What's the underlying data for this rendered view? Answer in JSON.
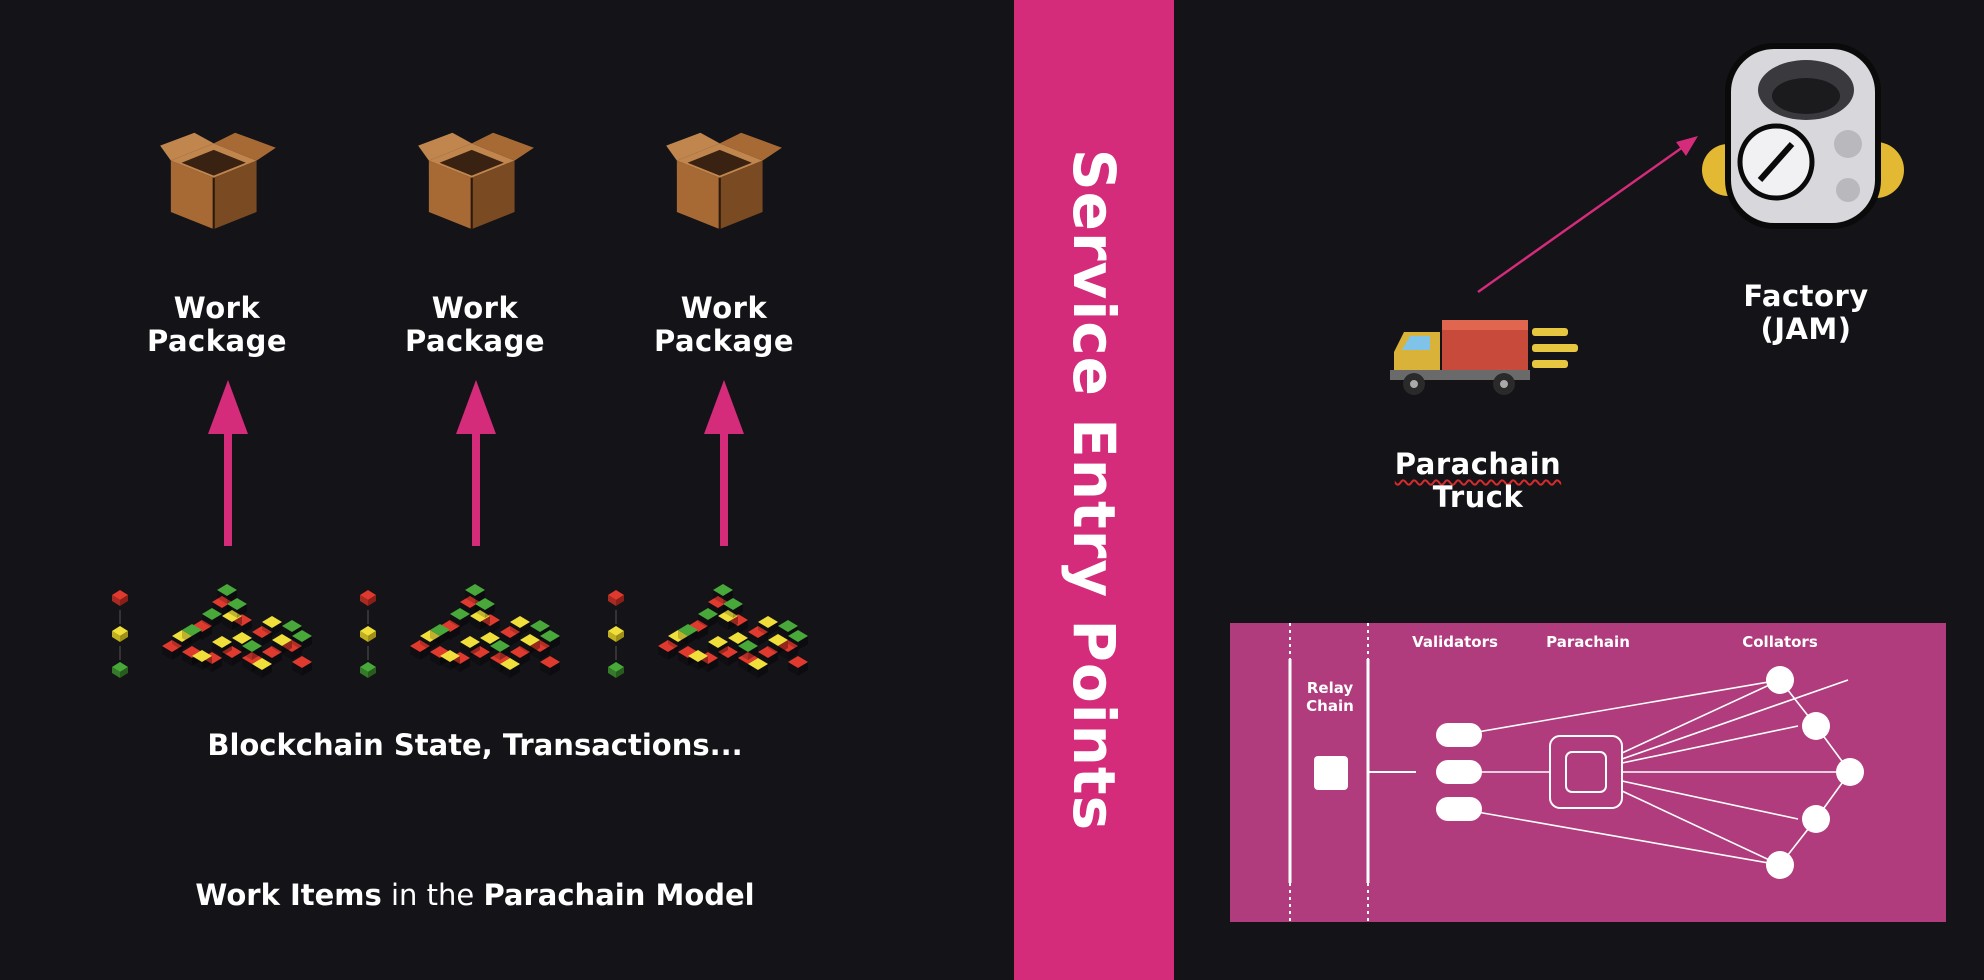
{
  "left": {
    "packages": [
      {
        "line1": "Work",
        "line2": "Package"
      },
      {
        "line1": "Work",
        "line2": "Package"
      },
      {
        "line1": "Work",
        "line2": "Package"
      }
    ],
    "state_label": "Blockchain State, Transactions...",
    "caption": {
      "part1": "Work Items",
      "part2": " in the ",
      "part3": "Parachain Model"
    }
  },
  "divider": {
    "text": "Service Entry Points",
    "color": "#d42b7a"
  },
  "right": {
    "truck": {
      "line1": "Parachain",
      "line2": "Truck"
    },
    "factory": {
      "line1": "Factory",
      "line2": "(JAM)"
    },
    "diagram": {
      "relay_chain_line1": "Relay",
      "relay_chain_line2": "Chain",
      "validators": "Validators",
      "parachain": "Parachain",
      "collators": "Collators",
      "bg_color": "#b03c7e"
    }
  },
  "colors": {
    "background": "#131318",
    "accent": "#d42b7a"
  },
  "icons": [
    "cardboard-box-icon",
    "arrow-up-icon",
    "lego-bricks-icon",
    "delivery-truck-icon",
    "factory-robot-icon"
  ]
}
